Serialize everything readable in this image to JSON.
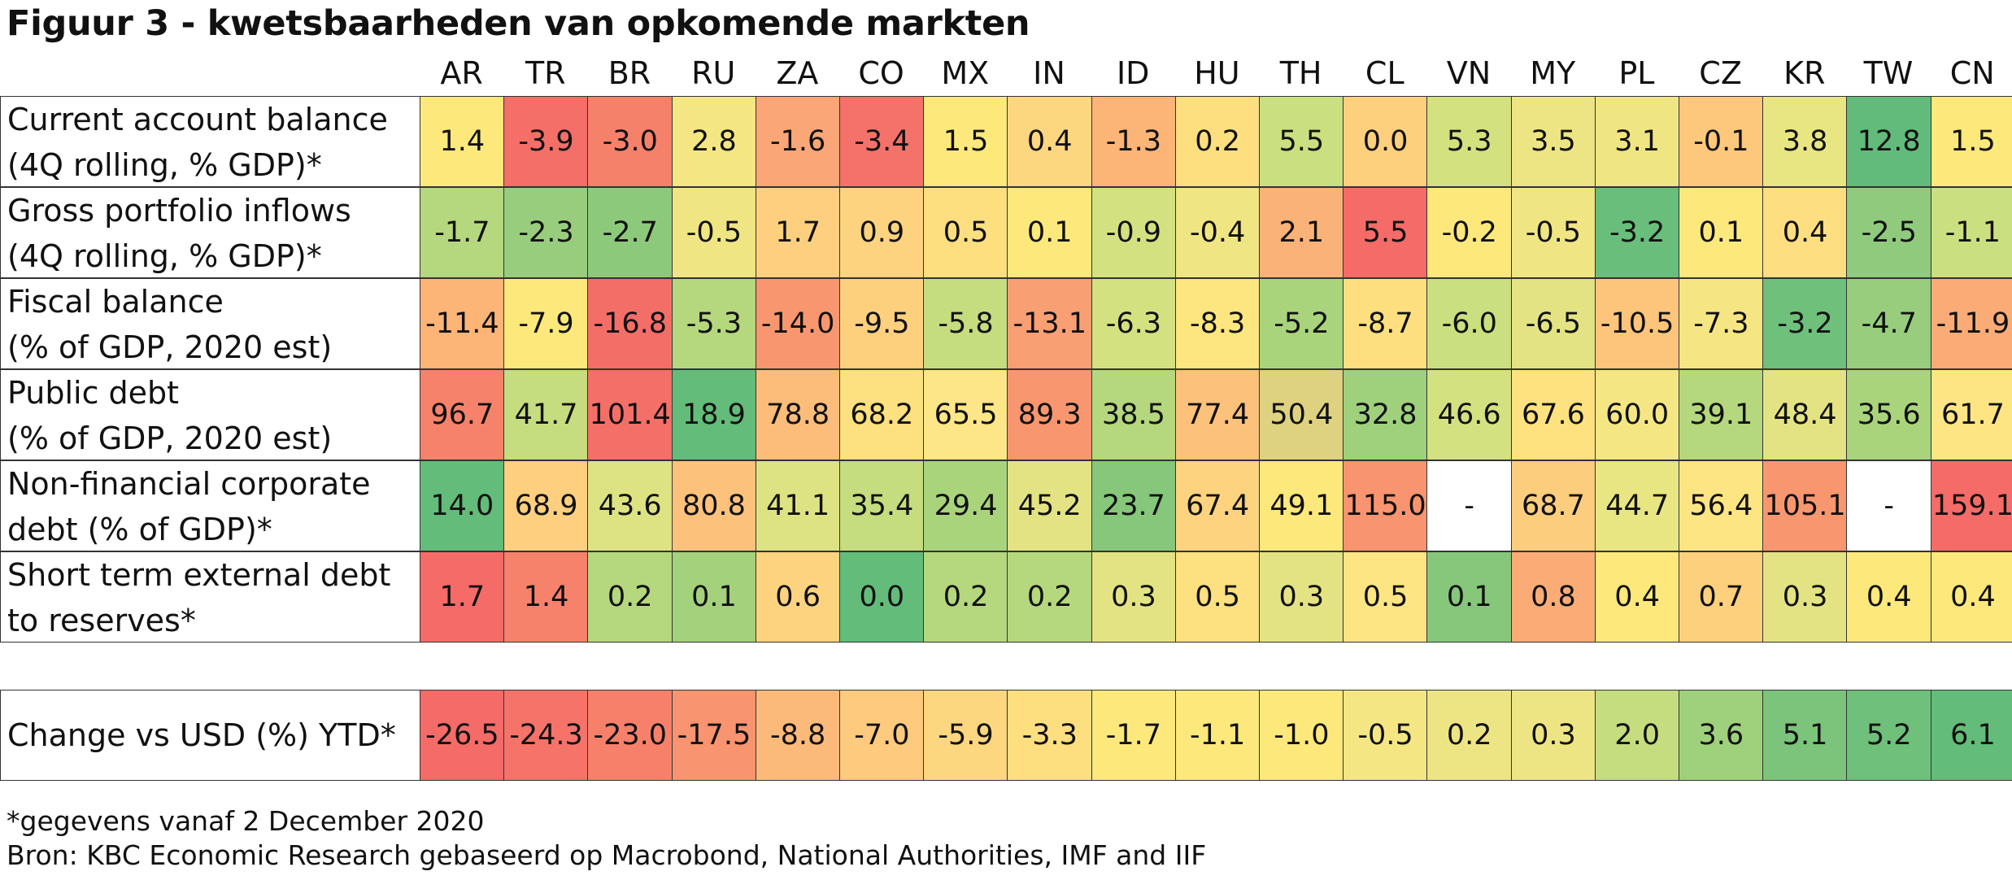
{
  "title": "Figuur 3 - kwetsbaarheden van opkomende markten",
  "chart_data": {
    "type": "table",
    "columns": [
      "AR",
      "TR",
      "BR",
      "RU",
      "ZA",
      "CO",
      "MX",
      "IN",
      "ID",
      "HU",
      "TH",
      "CL",
      "VN",
      "MY",
      "PL",
      "CZ",
      "KR",
      "TW",
      "CN"
    ],
    "rows": [
      {
        "label": [
          "Current account balance",
          "(4Q rolling, % GDP)*"
        ],
        "values": [
          "1.4",
          "-3.9",
          "-3.0",
          "2.8",
          "-1.6",
          "-3.4",
          "1.5",
          "0.4",
          "-1.3",
          "0.2",
          "5.5",
          "0.0",
          "5.3",
          "3.5",
          "3.1",
          "-0.1",
          "3.8",
          "12.8",
          "1.5"
        ],
        "colors": [
          "#fde87c",
          "#f46f68",
          "#f6816b",
          "#f4e783",
          "#fba676",
          "#f4726a",
          "#fde87c",
          "#fdd680",
          "#fcb477",
          "#fddf7f",
          "#cadf7f",
          "#fdd07e",
          "#d4e17f",
          "#ede583",
          "#f0e583",
          "#fdc87c",
          "#e8e583",
          "#62bb7a",
          "#fde87c"
        ]
      },
      {
        "label": [
          "Gross portfolio inflows",
          "(4Q rolling, % GDP)*"
        ],
        "values": [
          "-1.7",
          "-2.3",
          "-2.7",
          "-0.5",
          "1.7",
          "0.9",
          "0.5",
          "0.1",
          "-0.9",
          "-0.4",
          "2.1",
          "5.5",
          "-0.2",
          "-0.5",
          "-3.2",
          "0.1",
          "0.4",
          "-2.5",
          "-1.1"
        ],
        "colors": [
          "#b5d77d",
          "#97cd7c",
          "#8dc97b",
          "#efe583",
          "#fdcf7f",
          "#fdd37f",
          "#fddf7f",
          "#fde87c",
          "#d4e180",
          "#efe583",
          "#fbb278",
          "#f46b68",
          "#fde87c",
          "#efe583",
          "#68be7a",
          "#fde87c",
          "#fdde80",
          "#90ca7c",
          "#cadf7f"
        ]
      },
      {
        "label": [
          "Fiscal balance",
          "(% of GDP, 2020 est)"
        ],
        "values": [
          "-11.4",
          "-7.9",
          "-16.8",
          "-5.3",
          "-14.0",
          "-9.5",
          "-5.8",
          "-13.1",
          "-6.3",
          "-8.3",
          "-5.2",
          "-8.7",
          "-6.0",
          "-6.5",
          "-10.5",
          "-7.3",
          "-3.2",
          "-4.7",
          "-11.9"
        ],
        "colors": [
          "#fcb477",
          "#fde87c",
          "#f46e68",
          "#b5d77d",
          "#f8976f",
          "#fdd07e",
          "#c5dc7f",
          "#f89f73",
          "#d4e180",
          "#fde580",
          "#a9d47c",
          "#fddf7f",
          "#cadf7f",
          "#e3e383",
          "#fcc57b",
          "#f6e683",
          "#6ec07b",
          "#97cd7c",
          "#fbac76"
        ]
      },
      {
        "label": [
          "Public debt",
          "(% of GDP, 2020 est)"
        ],
        "values": [
          "96.7",
          "41.7",
          "101.4",
          "18.9",
          "78.8",
          "68.2",
          "65.5",
          "89.3",
          "38.5",
          "77.4",
          "50.4",
          "32.8",
          "46.6",
          "67.6",
          "60.0",
          "39.1",
          "48.4",
          "35.6",
          "61.7"
        ],
        "colors": [
          "#f6826b",
          "#c5dc7f",
          "#f46f68",
          "#63bc7a",
          "#fbbd79",
          "#fde07f",
          "#fde687",
          "#f8966f",
          "#b5d77d",
          "#fcc17b",
          "#ded281",
          "#9fd07c",
          "#d4e180",
          "#fde27f",
          "#f4e783",
          "#b5d77d",
          "#e3e383",
          "#a9d47c",
          "#fde584"
        ]
      },
      {
        "label": [
          "Non-financial corporate",
          "debt (% of GDP)*"
        ],
        "values": [
          "14.0",
          "68.9",
          "43.6",
          "80.8",
          "41.1",
          "35.4",
          "29.4",
          "45.2",
          "23.7",
          "67.4",
          "49.1",
          "115.0",
          "-",
          "68.7",
          "44.7",
          "56.4",
          "105.1",
          "-",
          "159.1"
        ],
        "colors": [
          "#63bc7a",
          "#fdcf7f",
          "#dde383",
          "#fcc27b",
          "#dde383",
          "#c5dc7f",
          "#a9d47c",
          "#e3e383",
          "#86c77b",
          "#fdd37f",
          "#fde87c",
          "#f8946f",
          "#ffffff",
          "#fbcd7d",
          "#e8e583",
          "#fde584",
          "#f8976f",
          "#ffffff",
          "#f46b68"
        ]
      },
      {
        "label": [
          "Short term external debt",
          "to reserves*"
        ],
        "values": [
          "1.7",
          "1.4",
          "0.2",
          "0.1",
          "0.6",
          "0.0",
          "0.2",
          "0.2",
          "0.3",
          "0.5",
          "0.3",
          "0.5",
          "0.1",
          "0.8",
          "0.4",
          "0.7",
          "0.3",
          "0.4",
          "0.4"
        ],
        "colors": [
          "#f46b68",
          "#f6826b",
          "#b5d77d",
          "#a3d17c",
          "#fdd37f",
          "#63bc7a",
          "#b5d77d",
          "#b5d77d",
          "#e3e383",
          "#fde07f",
          "#e3e383",
          "#fde584",
          "#86c77b",
          "#fbac76",
          "#fde87c",
          "#fdd07e",
          "#e3e383",
          "#fde87c",
          "#fde87c"
        ]
      },
      {
        "label": [
          "Change vs USD (%) YTD*"
        ],
        "values": [
          "-26.5",
          "-24.3",
          "-23.0",
          "-17.5",
          "-8.8",
          "-7.0",
          "-5.9",
          "-3.3",
          "-1.7",
          "-1.1",
          "-1.0",
          "-0.5",
          "0.2",
          "0.3",
          "2.0",
          "3.6",
          "5.1",
          "5.2",
          "6.1"
        ],
        "colors": [
          "#f46b68",
          "#f6736a",
          "#f7806b",
          "#f8946f",
          "#fbba79",
          "#fdca7e",
          "#fdd680",
          "#fddf7f",
          "#fde87c",
          "#fde87c",
          "#fde87c",
          "#f4e783",
          "#ede583",
          "#ede583",
          "#c5dc7f",
          "#9fd07c",
          "#7cc47b",
          "#6ec07b",
          "#63bc7a"
        ]
      }
    ]
  },
  "footnote": "*gegevens vanaf 2 December 2020",
  "source": "Bron: KBC Economic Research gebaseerd op Macrobond, National Authorities, IMF and IIF"
}
